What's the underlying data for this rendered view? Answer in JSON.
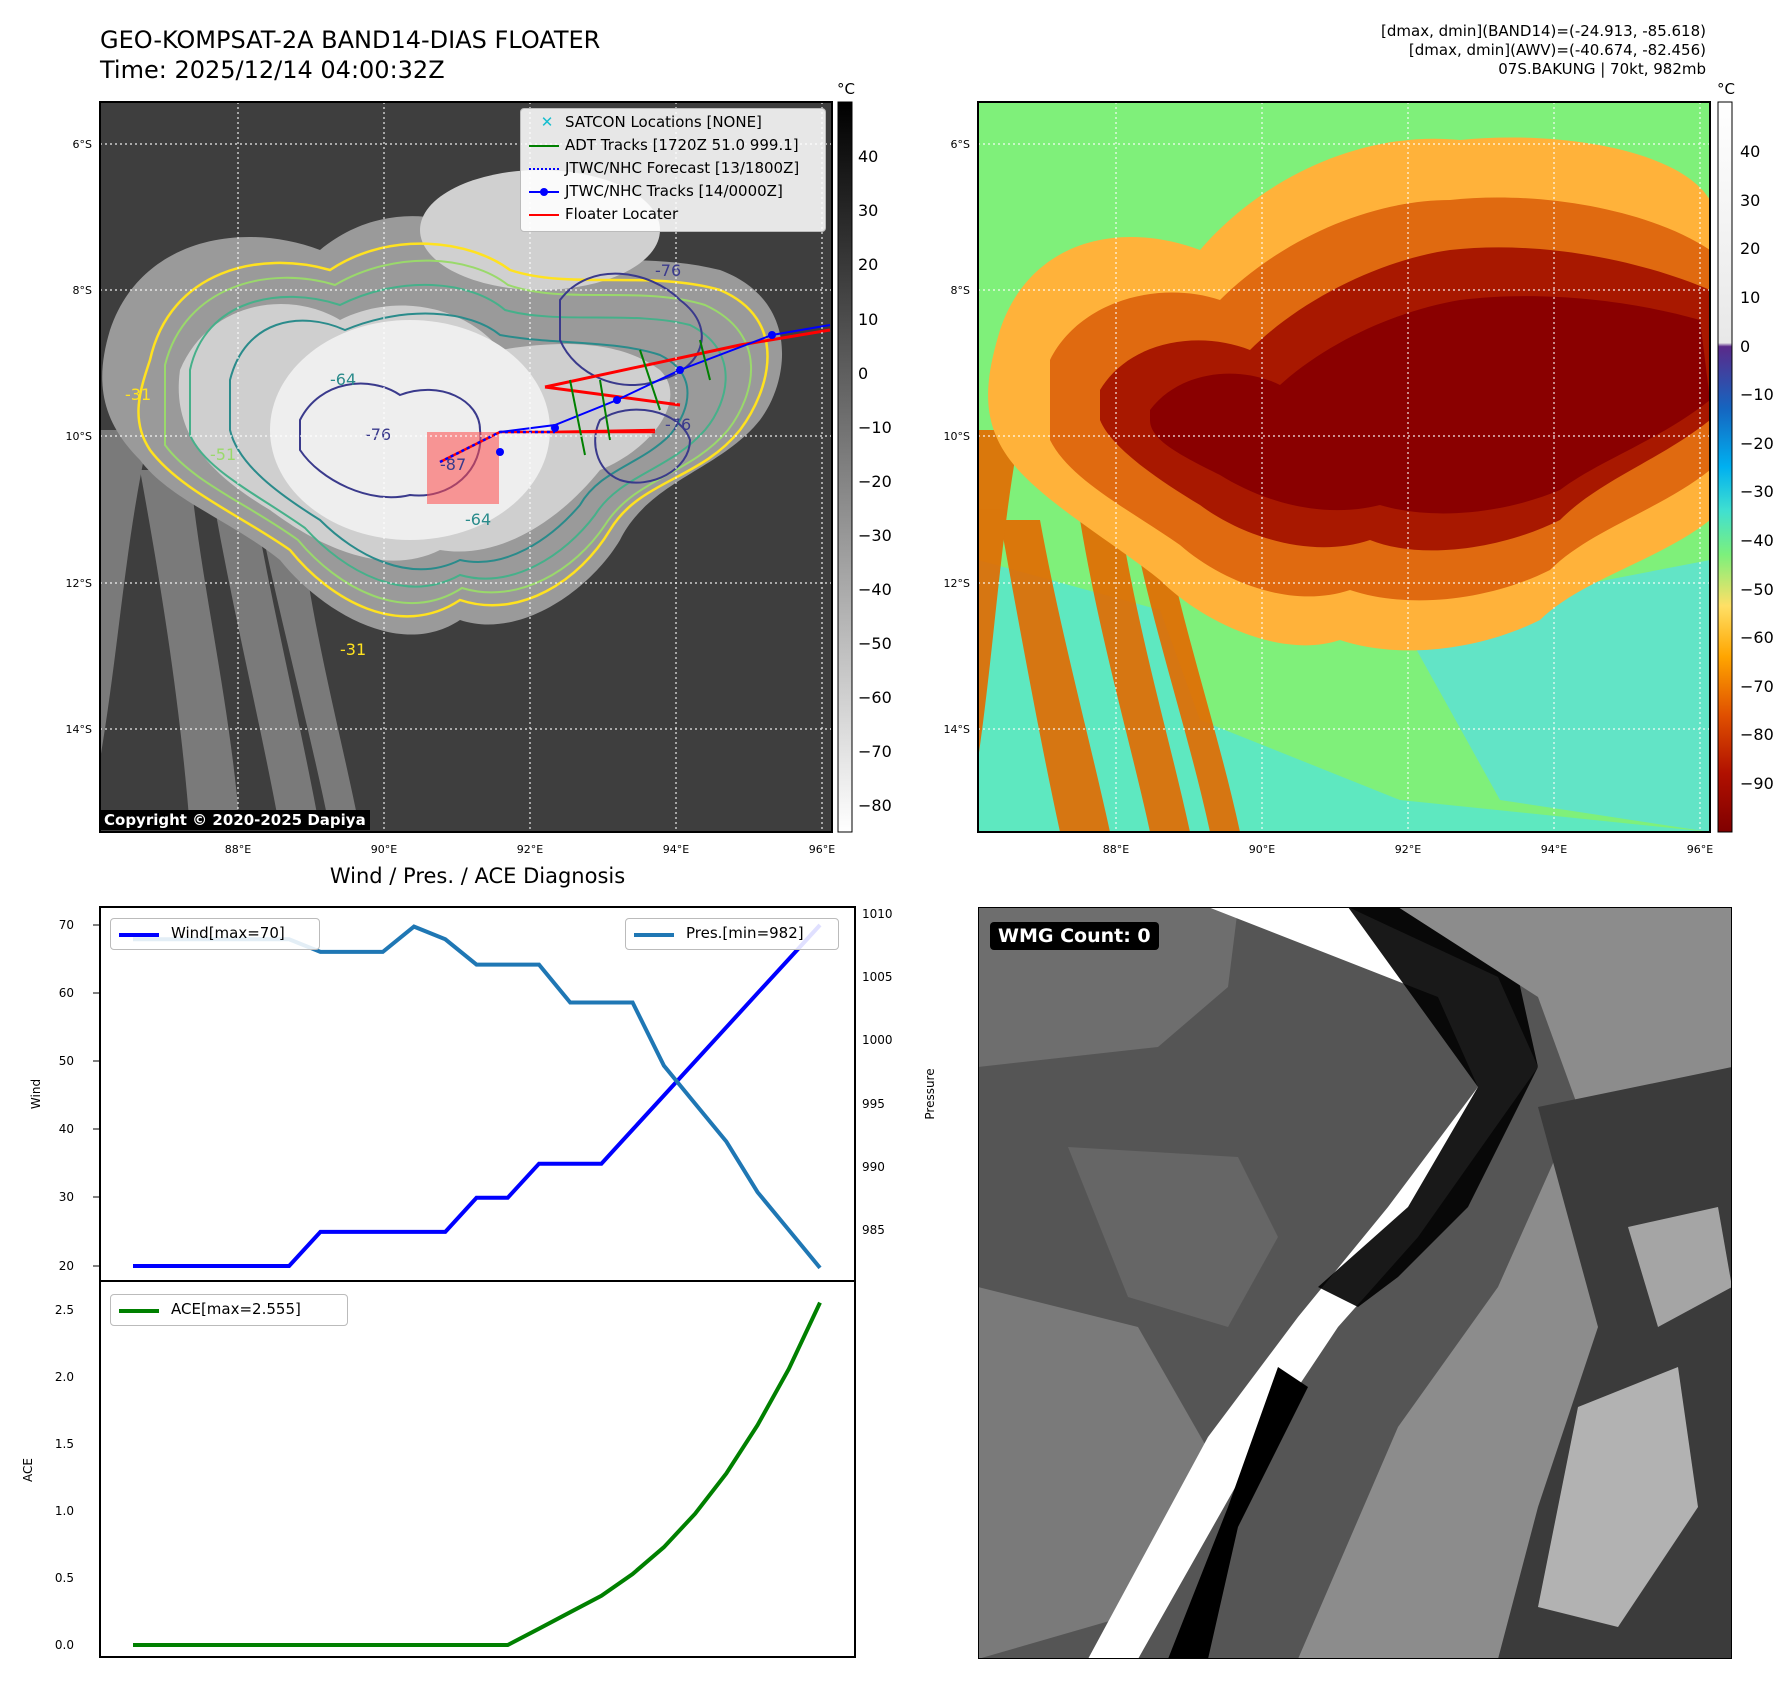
{
  "header": {
    "title_line1": "GEO-KOMPSAT-2A BAND14-DIAS FLOATER",
    "title_line2": "Time: 2025/12/14 04:00:32Z",
    "info_line1": "[dmax, dmin](BAND14)=(-24.913, -85.618)",
    "info_line2": "[dmax, dmin](AWV)=(-40.674, -82.456)",
    "info_line3": "07S.BAKUNG | 70kt, 982mb"
  },
  "map": {
    "lat_labels": [
      "6°S",
      "8°S",
      "10°S",
      "12°S",
      "14°S"
    ],
    "lon_labels": [
      "88°E",
      "90°E",
      "92°E",
      "94°E",
      "96°E"
    ],
    "copyright": "Copyright © 2020-2025 Dapiya",
    "contour_labels": [
      "-76",
      "-76",
      "-64",
      "-76",
      "-87",
      "-64",
      "-51",
      "-31",
      "-31"
    ],
    "legend": [
      {
        "label": "SATCON Locations [NONE]",
        "color": "#17becf",
        "style": "x-marker"
      },
      {
        "label": "ADT Tracks [1720Z 51.0 999.1]",
        "color": "#008000",
        "style": "solid"
      },
      {
        "label": "JTWC/NHC Forecast [13/1800Z]",
        "color": "#0000ff",
        "style": "dotted"
      },
      {
        "label": "JTWC/NHC Tracks [14/0000Z]",
        "color": "#0000ff",
        "style": "solid-dot"
      },
      {
        "label": "Floater Locater",
        "color": "#ff0000",
        "style": "solid"
      }
    ]
  },
  "colorbar_gray": {
    "unit": "°C",
    "ticks": [
      "40",
      "30",
      "20",
      "10",
      "0",
      "−10",
      "−20",
      "−30",
      "−40",
      "−50",
      "−60",
      "−70",
      "−80"
    ]
  },
  "colorbar_color": {
    "unit": "°C",
    "ticks": [
      "40",
      "30",
      "20",
      "10",
      "0",
      "−10",
      "−20",
      "−30",
      "−40",
      "−50",
      "−60",
      "−70",
      "−80",
      "−90"
    ]
  },
  "diagnosis": {
    "title": "Wind / Pres. / ACE Diagnosis",
    "wind_ylabel": "Wind",
    "pressure_ylabel": "Pressure",
    "ace_ylabel": "ACE",
    "wind_legend": "Wind[max=70]",
    "pres_legend": "Pres.[min=982]",
    "ace_legend": "ACE[max=2.555]",
    "wind_ticks": [
      "70",
      "60",
      "50",
      "40",
      "30",
      "20"
    ],
    "pres_ticks": [
      "1010",
      "1005",
      "1000",
      "995",
      "990",
      "985"
    ],
    "ace_ticks": [
      "2.5",
      "2.0",
      "1.5",
      "1.0",
      "0.5",
      "0.0"
    ]
  },
  "wmg": {
    "label": "WMG Count: 0"
  },
  "chart_data": [
    {
      "type": "line",
      "series": [
        {
          "name": "Wind[max=70]",
          "color": "#0000ff",
          "values": [
            20,
            20,
            20,
            20,
            20,
            20,
            25,
            25,
            25,
            25,
            25,
            30,
            30,
            35,
            35,
            35,
            40,
            45,
            50,
            55,
            60,
            65,
            70
          ]
        },
        {
          "name": "Pres.[min=982]",
          "color": "#1f77b4",
          "values": [
            1008,
            1008,
            1008,
            1008,
            1008,
            1008,
            1007,
            1007,
            1007,
            1009,
            1008,
            1006,
            1006,
            1006,
            1003,
            1003,
            1003,
            998,
            995,
            992,
            988,
            985,
            982
          ]
        }
      ],
      "ylim_wind": [
        20,
        70
      ],
      "ylim_pressure": [
        982,
        1010
      ]
    },
    {
      "type": "line",
      "series": [
        {
          "name": "ACE[max=2.555]",
          "color": "#008000",
          "values": [
            0,
            0,
            0,
            0,
            0,
            0,
            0,
            0,
            0,
            0,
            0,
            0,
            0,
            0.122,
            0.245,
            0.367,
            0.53,
            0.73,
            0.98,
            1.28,
            1.64,
            2.06,
            2.555
          ]
        }
      ],
      "ylim": [
        0,
        2.6
      ]
    }
  ]
}
